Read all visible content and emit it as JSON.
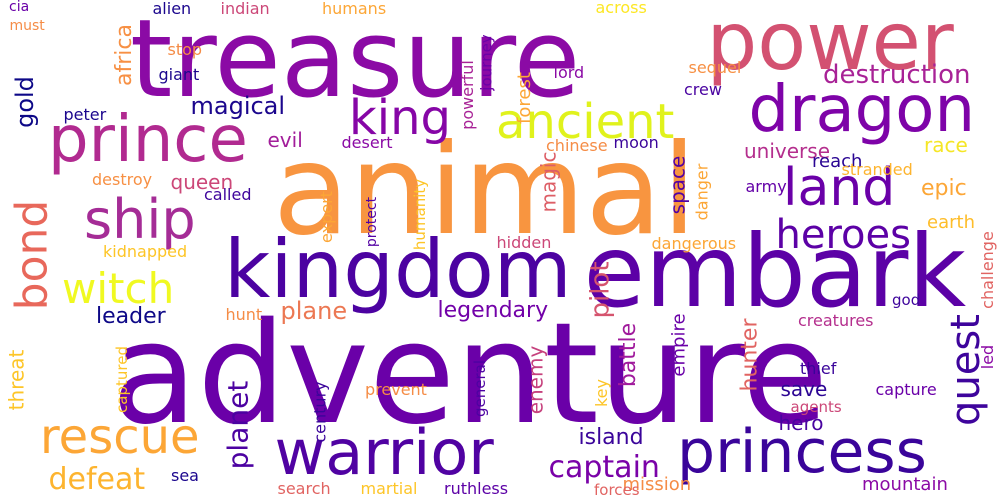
{
  "words": [
    {
      "text": "adventure",
      "color": "#6a00a8"
    },
    {
      "text": "animal",
      "color": "#f89540"
    },
    {
      "text": "treasure",
      "color": "#8b0aa5"
    },
    {
      "text": "embark",
      "color": "#5c01a6"
    },
    {
      "text": "power",
      "color": "#d35171"
    },
    {
      "text": "kingdom",
      "color": "#4c02a1"
    },
    {
      "text": "dragon",
      "color": "#7e03a8"
    },
    {
      "text": "prince",
      "color": "#b12a90"
    },
    {
      "text": "princess",
      "color": "#3a049a"
    },
    {
      "text": "warrior",
      "color": "#5002a2"
    },
    {
      "text": "rescue",
      "color": "#fca636"
    },
    {
      "text": "ship",
      "color": "#a52c96"
    },
    {
      "text": "ancient",
      "color": "#e0f21c"
    },
    {
      "text": "land",
      "color": "#6a00a8"
    },
    {
      "text": "king",
      "color": "#8606a6"
    },
    {
      "text": "bond",
      "color": "#e8685b"
    },
    {
      "text": "heroes",
      "color": "#5c01a6"
    },
    {
      "text": "quest",
      "color": "#3e049c"
    },
    {
      "text": "witch",
      "color": "#f0f921"
    },
    {
      "text": "captain",
      "color": "#7a02a8"
    },
    {
      "text": "defeat",
      "color": "#fdb42f"
    },
    {
      "text": "planet",
      "color": "#4c02a1"
    },
    {
      "text": "destruction",
      "color": "#a82296"
    },
    {
      "text": "magical",
      "color": "#1b068d"
    },
    {
      "text": "gold",
      "color": "#0d0887"
    },
    {
      "text": "africa",
      "color": "#f79044"
    },
    {
      "text": "plane",
      "color": "#ec7853"
    },
    {
      "text": "legendary",
      "color": "#7201a8"
    },
    {
      "text": "pilot",
      "color": "#d5546e"
    },
    {
      "text": "island",
      "color": "#3a049a"
    },
    {
      "text": "leader",
      "color": "#0d0887"
    },
    {
      "text": "epic",
      "color": "#fca636"
    },
    {
      "text": "universe",
      "color": "#b42e8d"
    },
    {
      "text": "space",
      "color": "#5302a3"
    },
    {
      "text": "hunter",
      "color": "#e16462"
    },
    {
      "text": "save",
      "color": "#2c0594"
    },
    {
      "text": "hero",
      "color": "#4903a0"
    },
    {
      "text": "battle",
      "color": "#a01a9c"
    },
    {
      "text": "magic",
      "color": "#dd5e66"
    },
    {
      "text": "queen",
      "color": "#cc4778"
    },
    {
      "text": "evil",
      "color": "#a21d9a"
    },
    {
      "text": "race",
      "color": "#f5e626"
    },
    {
      "text": "reach",
      "color": "#2a0593"
    },
    {
      "text": "earth",
      "color": "#febd2a"
    },
    {
      "text": "mission",
      "color": "#f58c46"
    },
    {
      "text": "mountain",
      "color": "#8b0aa5"
    },
    {
      "text": "threat",
      "color": "#fdc527"
    },
    {
      "text": "enemy",
      "color": "#c6417d"
    },
    {
      "text": "forest",
      "color": "#fca636"
    },
    {
      "text": "empire",
      "color": "#6a00a8"
    },
    {
      "text": "crew",
      "color": "#4903a0"
    },
    {
      "text": "army",
      "color": "#6300a7"
    },
    {
      "text": "thief",
      "color": "#3a049a"
    },
    {
      "text": "capture",
      "color": "#6a00a8"
    },
    {
      "text": "creatures",
      "color": "#b42e8d"
    },
    {
      "text": "god",
      "color": "#3e049c"
    },
    {
      "text": "alien",
      "color": "#1b068d"
    },
    {
      "text": "indian",
      "color": "#cc4778"
    },
    {
      "text": "humans",
      "color": "#fca636"
    },
    {
      "text": "across",
      "color": "#fde725"
    },
    {
      "text": "cia",
      "color": "#6a00a8"
    },
    {
      "text": "must",
      "color": "#f58c46"
    },
    {
      "text": "stop",
      "color": "#f58c46"
    },
    {
      "text": "giant",
      "color": "#1b068d"
    },
    {
      "text": "journey",
      "color": "#6a00a8"
    },
    {
      "text": "powerful",
      "color": "#a82296"
    },
    {
      "text": "lord",
      "color": "#8b0aa5"
    },
    {
      "text": "sequel",
      "color": "#f79044"
    },
    {
      "text": "peter",
      "color": "#1b068d"
    },
    {
      "text": "desert",
      "color": "#8b0aa5"
    },
    {
      "text": "chinese",
      "color": "#f58c46"
    },
    {
      "text": "moon",
      "color": "#3a049a"
    },
    {
      "text": "destroy",
      "color": "#f79044"
    },
    {
      "text": "called",
      "color": "#3e049c"
    },
    {
      "text": "expert",
      "color": "#fca636"
    },
    {
      "text": "protect",
      "color": "#5302a3"
    },
    {
      "text": "humanity",
      "color": "#fdc527"
    },
    {
      "text": "danger",
      "color": "#fca636"
    },
    {
      "text": "stranded",
      "color": "#fdb42f"
    },
    {
      "text": "kidnapped",
      "color": "#fdc527"
    },
    {
      "text": "hidden",
      "color": "#cc4778"
    },
    {
      "text": "dangerous",
      "color": "#fca636"
    },
    {
      "text": "challenge",
      "color": "#e16462"
    },
    {
      "text": "hunt",
      "color": "#f58c46"
    },
    {
      "text": "captured",
      "color": "#fdc527"
    },
    {
      "text": "prevent",
      "color": "#f58c46"
    },
    {
      "text": "century",
      "color": "#3a049a"
    },
    {
      "text": "general",
      "color": "#4c02a1"
    },
    {
      "text": "key",
      "color": "#fdc527"
    },
    {
      "text": "agents",
      "color": "#cc4778"
    },
    {
      "text": "led",
      "color": "#8b0aa5"
    },
    {
      "text": "sea",
      "color": "#1b068d"
    },
    {
      "text": "search",
      "color": "#e16462"
    },
    {
      "text": "martial",
      "color": "#fdc527"
    },
    {
      "text": "ruthless",
      "color": "#5c01a6"
    },
    {
      "text": "forces",
      "color": "#e16462"
    }
  ]
}
